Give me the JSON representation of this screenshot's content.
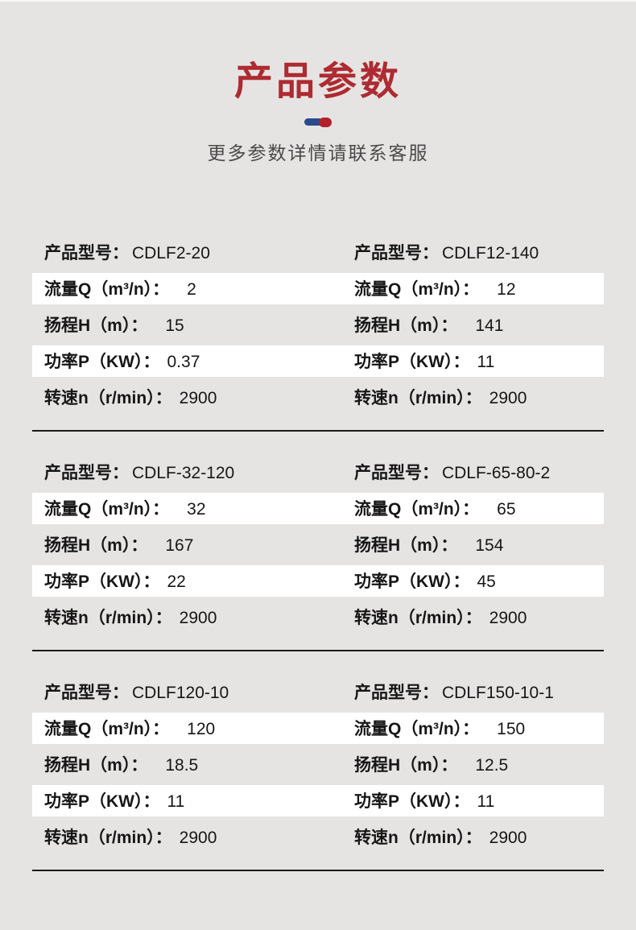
{
  "page": {
    "title": "产品参数",
    "subtitle": "更多参数详情请联系客服",
    "colors": {
      "title_red": "#ad2b31",
      "pill_blue": "#2b4a8e",
      "pill_red": "#b2212b",
      "page_background": "#e6e4e3",
      "row_highlight_white": "#ffffff",
      "table_text": "#161616",
      "subtitle_gray": "#4a4a4a",
      "divider_line": "#1a1a1a"
    }
  },
  "labels": {
    "model": "产品型号：",
    "flow": "流量Q（m³/n）：",
    "head": "扬程H（m）：",
    "power": "功率P（KW）：",
    "speed": "转速n（r/min）："
  },
  "sections": [
    {
      "products": [
        {
          "model": "CDLF2-20",
          "flow": "2",
          "head": "15",
          "power": "0.37",
          "speed": "2900"
        },
        {
          "model": "CDLF12-140",
          "flow": "12",
          "head": "141",
          "power": "11",
          "speed": "2900"
        }
      ]
    },
    {
      "products": [
        {
          "model": "CDLF-32-120",
          "flow": "32",
          "head": "167",
          "power": "22",
          "speed": "2900"
        },
        {
          "model": "CDLF-65-80-2",
          "flow": "65",
          "head": "154",
          "power": "45",
          "speed": "2900"
        }
      ]
    },
    {
      "products": [
        {
          "model": "CDLF120-10",
          "flow": "120",
          "head": "18.5",
          "power": "11",
          "speed": "2900"
        },
        {
          "model": "CDLF150-10-1",
          "flow": "150",
          "head": "12.5",
          "power": "11",
          "speed": "2900"
        }
      ]
    }
  ]
}
